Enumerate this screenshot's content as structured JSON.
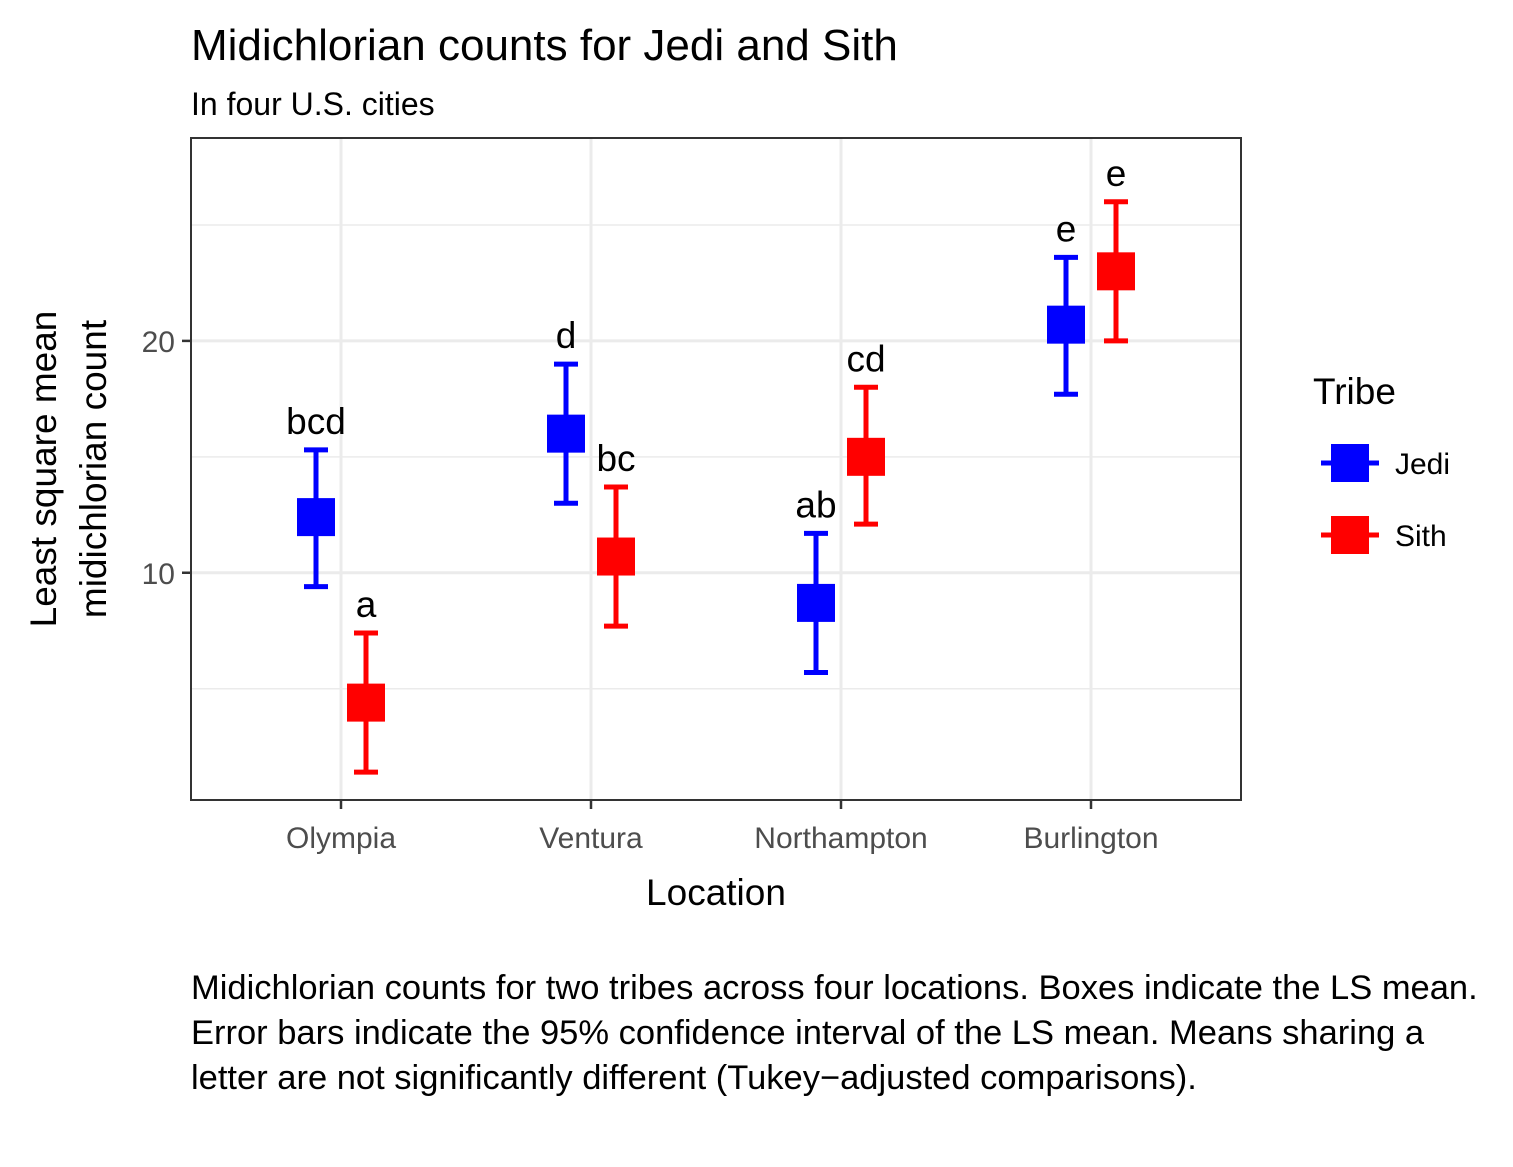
{
  "chart_data": {
    "type": "scatter",
    "title": "Midichlorian counts for Jedi and Sith",
    "subtitle": "In four U.S. cities",
    "xlabel": "Location",
    "ylabel_lines": [
      "Least square mean",
      "midichlorian count"
    ],
    "categories": [
      "Olympia",
      "Ventura",
      "Northampton",
      "Burlington"
    ],
    "ylim": [
      0.2,
      28.75
    ],
    "yticks": [
      10,
      20
    ],
    "ygrid_minor": [
      5,
      15,
      25
    ],
    "grid": true,
    "legend": {
      "title": "Tribe",
      "position": "right",
      "entries": [
        "Jedi",
        "Sith"
      ]
    },
    "series": [
      {
        "name": "Jedi",
        "color": "#0000ff",
        "mean": [
          12.4,
          16.0,
          8.7,
          20.7
        ],
        "lower": [
          9.4,
          13.0,
          5.7,
          17.7
        ],
        "upper": [
          15.3,
          19.0,
          11.7,
          23.6
        ],
        "letters": [
          "bcd",
          "d",
          "ab",
          "e"
        ]
      },
      {
        "name": "Sith",
        "color": "#ff0000",
        "mean": [
          4.4,
          10.7,
          15.0,
          23.0
        ],
        "lower": [
          1.4,
          7.7,
          12.1,
          20.0
        ],
        "upper": [
          7.4,
          13.7,
          18.0,
          26.0
        ],
        "letters": [
          "a",
          "bc",
          "cd",
          "e"
        ]
      }
    ],
    "caption": "Midichlorian counts for two tribes across four locations. Boxes indicate the LS mean. Error bars indicate the 95% confidence interval of the LS mean. Means sharing a letter are not significantly different (Tukey−adjusted comparisons)."
  }
}
